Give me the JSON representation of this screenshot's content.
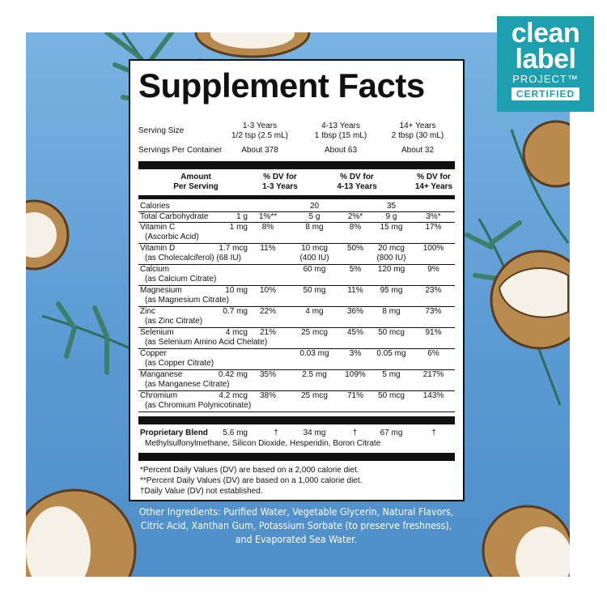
{
  "badge": {
    "line1": "clean",
    "line2": "label",
    "line3": "PROJECT™",
    "line4": "CERTIFIED"
  },
  "facts": {
    "title": "Supplement Facts",
    "serving_size_label": "Serving Size",
    "servings_label": "Servings Per Container",
    "groups": [
      {
        "age": "1-3 Years",
        "size": "1/2 tsp (2.5 mL)",
        "servings": "About 378"
      },
      {
        "age": "4-13 Years",
        "size": "1 tbsp (15 mL)",
        "servings": "About 63"
      },
      {
        "age": "14+ Years",
        "size": "2 tbsp (30 mL)",
        "servings": "About 32"
      }
    ],
    "header": {
      "amount": "Amount",
      "per": "Per Serving",
      "dv": "% DV for",
      "g1": "1-3 Years",
      "g2": "4-13 Years",
      "g3": "14+ Years"
    },
    "rows": [
      {
        "name": "Calories",
        "sub": "",
        "v": [
          "",
          "",
          "20",
          "",
          "35",
          ""
        ]
      },
      {
        "name": "Total Carbohydrate",
        "sub": "",
        "v": [
          "1 g",
          "1%**",
          "5 g",
          "2%*",
          "9 g",
          "3%*"
        ]
      },
      {
        "name": "Vitamin C",
        "sub": "(Ascorbic Acid)",
        "v": [
          "1 mg",
          "8%",
          "8 mg",
          "8%",
          "15 mg",
          "17%"
        ]
      },
      {
        "name": "Vitamin D",
        "sub": "(as Cholecalciferol) (68 IU)",
        "v": [
          "1.7 mcg",
          "11%",
          "10 mcg",
          "50%",
          "20 mcg",
          "100%"
        ],
        "v2": [
          "",
          "",
          "(400 IU)",
          "",
          "(800 IU)",
          ""
        ]
      },
      {
        "name": "Calcium",
        "sub": "(as Calcium Citrate)",
        "v": [
          "",
          "",
          "60 mg",
          "5%",
          "120 mg",
          "9%"
        ]
      },
      {
        "name": "Magnesium",
        "sub": "(as Magnesium Citrate)",
        "v": [
          "10 mg",
          "10%",
          "50 mg",
          "11%",
          "95 mg",
          "23%"
        ]
      },
      {
        "name": "Zinc",
        "sub": "(as Zinc Citrate)",
        "v": [
          "0.7 mg",
          "22%",
          "4 mg",
          "36%",
          "8 mg",
          "73%"
        ]
      },
      {
        "name": "Selenium",
        "sub": "(as Selenium Amino Acid Chelate)",
        "v": [
          "4 mcg",
          "21%",
          "25 mcg",
          "45%",
          "50 mcg",
          "91%"
        ]
      },
      {
        "name": "Copper",
        "sub": "(as Copper Citrate)",
        "v": [
          "",
          "",
          "0.03 mg",
          "3%",
          "0.05 mg",
          "6%"
        ]
      },
      {
        "name": "Manganese",
        "sub": "(as Manganese Citrate)",
        "v": [
          "0.42 mg",
          "35%",
          "2.5 mg",
          "109%",
          "5 mg",
          "217%"
        ]
      },
      {
        "name": "Chromium",
        "sub": "(as Chromium Polynicotinate)",
        "v": [
          "4.2 mcg",
          "38%",
          "25 mcg",
          "71%",
          "50 mcg",
          "143%"
        ]
      }
    ],
    "blend": {
      "name": "Proprietary Blend",
      "v": [
        "5.6 mg",
        "†",
        "34 mg",
        "†",
        "67 mg",
        "†"
      ],
      "ingredients": "Methylsulfonylmethane, Silicon Dioxide, Hesperidin, Boron Citrate"
    },
    "footnotes": [
      "*Percent Daily Values (DV) are based on a 2,000 calorie diet.",
      "**Percent Daily Values (DV) are based on a 1,000 calorie diet.",
      "†Daily Value (DV) not established."
    ]
  },
  "other_ingredients": "Other Ingredients: Purified Water, Vegetable Glycerin, Natural Flavors, Citric Acid, Xanthan Gum, Potassium Sorbate (to preserve freshness), and Evaporated Sea Water.",
  "colors": {
    "background": "#6aa8dc",
    "badge": "#1d9fb0",
    "coconut_shell": "#b98a4e",
    "coconut_flesh": "#f5f1e6",
    "leaf": "#3c7f6a"
  }
}
